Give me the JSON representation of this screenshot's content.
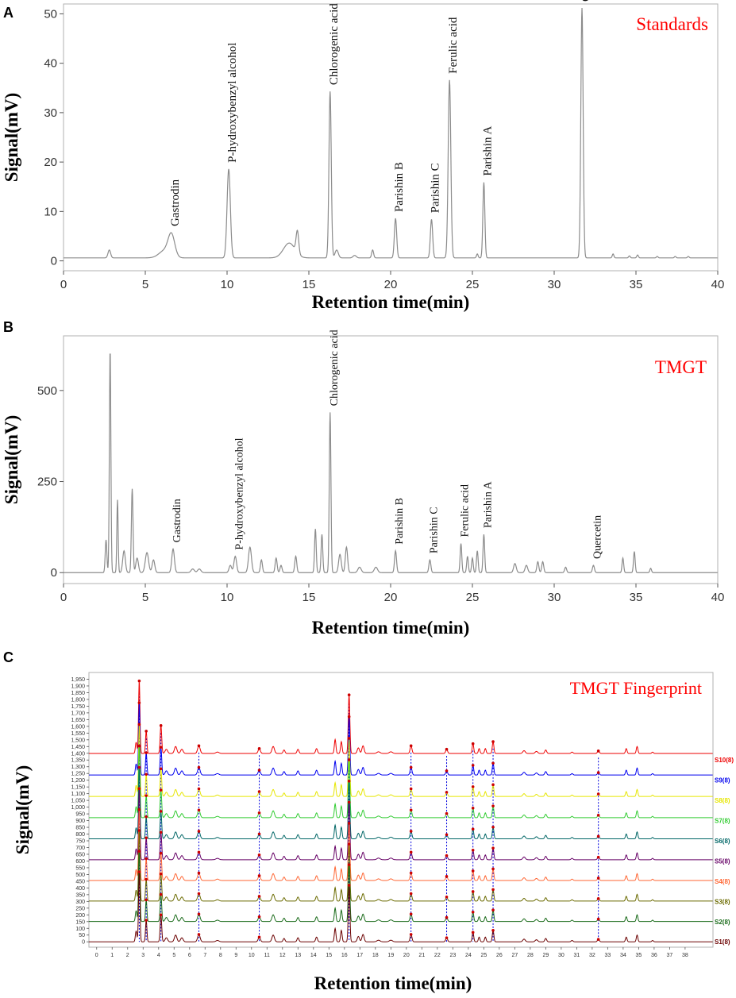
{
  "chart_data": [
    {
      "type": "line",
      "panel_label": "A",
      "title": "Standards",
      "title_color": "#ff0000",
      "xlabel": "Retention time(min)",
      "ylabel": "Signal(mV)",
      "xlim": [
        0,
        40
      ],
      "ylim": [
        -2,
        52
      ],
      "xticks": [
        0,
        5,
        10,
        15,
        20,
        25,
        30,
        35,
        40
      ],
      "yticks": [
        0,
        10,
        20,
        30,
        40,
        50
      ],
      "baseline": 0.6,
      "line_color": "#8c8c8c",
      "peaks": [
        {
          "t": 2.8,
          "h": 1.6,
          "w": 0.08
        },
        {
          "t": 6.6,
          "h": 4.3,
          "w": 0.2,
          "label": "Gastrodin"
        },
        {
          "t": 6.2,
          "h": 1.5,
          "w": 0.35
        },
        {
          "t": 10.1,
          "h": 18.0,
          "w": 0.1,
          "label": "P-hydroxybenzyl alcohol"
        },
        {
          "t": 13.8,
          "h": 3.0,
          "w": 0.35
        },
        {
          "t": 14.3,
          "h": 4.5,
          "w": 0.08
        },
        {
          "t": 16.3,
          "h": 33.7,
          "w": 0.07,
          "label": "Chlorogenic acid"
        },
        {
          "t": 16.7,
          "h": 1.6,
          "w": 0.1
        },
        {
          "t": 17.8,
          "h": 0.5,
          "w": 0.1
        },
        {
          "t": 18.9,
          "h": 1.6,
          "w": 0.06
        },
        {
          "t": 20.3,
          "h": 8.0,
          "w": 0.07,
          "label": "Parishin B"
        },
        {
          "t": 22.5,
          "h": 7.8,
          "w": 0.07,
          "label": "Parishin C"
        },
        {
          "t": 23.6,
          "h": 36.0,
          "w": 0.08,
          "label": "Ferulic acid"
        },
        {
          "t": 25.3,
          "h": 0.8,
          "w": 0.05
        },
        {
          "t": 25.7,
          "h": 15.3,
          "w": 0.06,
          "label": "Parishin A"
        },
        {
          "t": 31.7,
          "h": 50.6,
          "w": 0.07,
          "label": "Quercetin"
        },
        {
          "t": 33.6,
          "h": 0.8,
          "w": 0.05
        },
        {
          "t": 34.6,
          "h": 0.4,
          "w": 0.05
        },
        {
          "t": 35.1,
          "h": 0.6,
          "w": 0.05
        },
        {
          "t": 36.3,
          "h": 0.3,
          "w": 0.05
        },
        {
          "t": 37.4,
          "h": 0.3,
          "w": 0.05
        },
        {
          "t": 38.2,
          "h": 0.3,
          "w": 0.05
        }
      ]
    },
    {
      "type": "line",
      "panel_label": "B",
      "title": "TMGT",
      "title_color": "#ff0000",
      "xlabel": "Retention time(min)",
      "ylabel": "Signal(mV)",
      "xlim": [
        0,
        40
      ],
      "ylim": [
        -30,
        650
      ],
      "xticks": [
        0,
        5,
        10,
        15,
        20,
        25,
        30,
        35,
        40
      ],
      "yticks": [
        0,
        250,
        500
      ],
      "baseline": 0,
      "line_color": "#8c8c8c",
      "peaks": [
        {
          "t": 2.6,
          "h": 90,
          "w": 0.05
        },
        {
          "t": 2.85,
          "h": 615,
          "w": 0.045
        },
        {
          "t": 3.3,
          "h": 200,
          "w": 0.04
        },
        {
          "t": 3.7,
          "h": 60,
          "w": 0.08
        },
        {
          "t": 4.2,
          "h": 230,
          "w": 0.05
        },
        {
          "t": 4.5,
          "h": 40,
          "w": 0.08
        },
        {
          "t": 5.1,
          "h": 55,
          "w": 0.1
        },
        {
          "t": 5.5,
          "h": 35,
          "w": 0.08
        },
        {
          "t": 6.7,
          "h": 65,
          "w": 0.08,
          "label": "Gastrodin"
        },
        {
          "t": 7.9,
          "h": 10,
          "w": 0.1
        },
        {
          "t": 8.3,
          "h": 10,
          "w": 0.1
        },
        {
          "t": 10.5,
          "h": 45,
          "w": 0.08,
          "label": "P-hydroxybenzyl alcohol"
        },
        {
          "t": 10.2,
          "h": 20,
          "w": 0.08
        },
        {
          "t": 11.4,
          "h": 70,
          "w": 0.09
        },
        {
          "t": 12.1,
          "h": 35,
          "w": 0.06
        },
        {
          "t": 13.0,
          "h": 40,
          "w": 0.06
        },
        {
          "t": 13.3,
          "h": 20,
          "w": 0.06
        },
        {
          "t": 14.2,
          "h": 45,
          "w": 0.06
        },
        {
          "t": 15.4,
          "h": 120,
          "w": 0.05
        },
        {
          "t": 15.8,
          "h": 105,
          "w": 0.05
        },
        {
          "t": 16.3,
          "h": 440,
          "w": 0.05,
          "label": "Chlorogenic acid"
        },
        {
          "t": 16.9,
          "h": 50,
          "w": 0.08
        },
        {
          "t": 17.3,
          "h": 70,
          "w": 0.07
        },
        {
          "t": 18.1,
          "h": 15,
          "w": 0.1
        },
        {
          "t": 19.1,
          "h": 15,
          "w": 0.1
        },
        {
          "t": 20.3,
          "h": 60,
          "w": 0.06,
          "label": "Parishin B"
        },
        {
          "t": 22.4,
          "h": 35,
          "w": 0.06,
          "label": "Parishin C"
        },
        {
          "t": 24.3,
          "h": 80,
          "w": 0.05,
          "label": "Ferulic acid"
        },
        {
          "t": 24.7,
          "h": 45,
          "w": 0.05
        },
        {
          "t": 25.0,
          "h": 40,
          "w": 0.05
        },
        {
          "t": 25.3,
          "h": 60,
          "w": 0.05
        },
        {
          "t": 25.7,
          "h": 105,
          "w": 0.05,
          "label": "Parishin A"
        },
        {
          "t": 27.6,
          "h": 25,
          "w": 0.08
        },
        {
          "t": 28.3,
          "h": 20,
          "w": 0.08
        },
        {
          "t": 29.0,
          "h": 30,
          "w": 0.06
        },
        {
          "t": 29.3,
          "h": 30,
          "w": 0.06
        },
        {
          "t": 30.7,
          "h": 15,
          "w": 0.06
        },
        {
          "t": 32.4,
          "h": 20,
          "w": 0.06,
          "label": "Quercetin"
        },
        {
          "t": 34.2,
          "h": 40,
          "w": 0.05
        },
        {
          "t": 34.9,
          "h": 58,
          "w": 0.05
        },
        {
          "t": 35.9,
          "h": 12,
          "w": 0.05
        }
      ]
    },
    {
      "type": "line",
      "panel_label": "C",
      "title": "TMGT  Fingerprint",
      "title_color": "#ff0000",
      "xlabel": "Retention time(min)",
      "ylabel": "Signal(mV)",
      "xlim": [
        -0.5,
        39.8
      ],
      "ylim": [
        -40,
        2000
      ],
      "xticks": [
        0,
        1,
        2,
        3,
        4,
        5,
        6,
        7,
        8,
        9,
        10,
        11,
        12,
        13,
        14,
        15,
        16,
        17,
        18,
        19,
        20,
        21,
        22,
        23,
        24,
        25,
        26,
        27,
        28,
        29,
        30,
        31,
        32,
        33,
        34,
        35,
        36,
        37,
        38
      ],
      "yticks": [
        0,
        50,
        100,
        150,
        200,
        250,
        300,
        350,
        400,
        450,
        500,
        550,
        600,
        650,
        700,
        750,
        800,
        850,
        900,
        950,
        1000,
        1050,
        1100,
        1150,
        1200,
        1250,
        1300,
        1350,
        1400,
        1450,
        1500,
        1550,
        1600,
        1650,
        1700,
        1750,
        1800,
        1850,
        1900,
        1950
      ],
      "common_peaks": [
        2.75,
        3.2,
        4.15,
        6.6,
        10.5,
        16.3,
        20.3,
        22.6,
        24.3,
        25.6,
        32.4
      ],
      "marker_color": "#cc0000",
      "reference_line_color": "#0000dd",
      "series": [
        {
          "name": "S1(8)",
          "offset": 0,
          "color": "#6b0000"
        },
        {
          "name": "S2(8)",
          "offset": 150,
          "color": "#1a6b1a"
        },
        {
          "name": "S3(8)",
          "offset": 300,
          "color": "#6b6b00"
        },
        {
          "name": "S4(8)",
          "offset": 450,
          "color": "#ff6633"
        },
        {
          "name": "S5(8)",
          "offset": 600,
          "color": "#660066"
        },
        {
          "name": "S6(8)",
          "offset": 750,
          "color": "#006666"
        },
        {
          "name": "S7(8)",
          "offset": 900,
          "color": "#33cc33"
        },
        {
          "name": "S8(8)",
          "offset": 1050,
          "color": "#e6e600"
        },
        {
          "name": "S9(8)",
          "offset": 1200,
          "color": "#0000ee"
        },
        {
          "name": "S10(8)",
          "offset": 1350,
          "color": "#ee0000"
        }
      ],
      "profile": [
        {
          "t": 2.55,
          "h": 80,
          "w": 0.05
        },
        {
          "t": 2.75,
          "h": 520,
          "w": 0.045
        },
        {
          "t": 3.2,
          "h": 160,
          "w": 0.045
        },
        {
          "t": 4.15,
          "h": 200,
          "w": 0.05
        },
        {
          "t": 4.5,
          "h": 30,
          "w": 0.08
        },
        {
          "t": 5.1,
          "h": 50,
          "w": 0.08
        },
        {
          "t": 5.5,
          "h": 30,
          "w": 0.08
        },
        {
          "t": 6.6,
          "h": 55,
          "w": 0.08
        },
        {
          "t": 7.8,
          "h": 10,
          "w": 0.1
        },
        {
          "t": 10.5,
          "h": 35,
          "w": 0.07
        },
        {
          "t": 11.4,
          "h": 50,
          "w": 0.08
        },
        {
          "t": 12.1,
          "h": 25,
          "w": 0.06
        },
        {
          "t": 13.0,
          "h": 30,
          "w": 0.06
        },
        {
          "t": 14.2,
          "h": 35,
          "w": 0.06
        },
        {
          "t": 15.4,
          "h": 100,
          "w": 0.05
        },
        {
          "t": 15.8,
          "h": 85,
          "w": 0.05
        },
        {
          "t": 16.3,
          "h": 420,
          "w": 0.05
        },
        {
          "t": 16.9,
          "h": 40,
          "w": 0.07
        },
        {
          "t": 17.2,
          "h": 55,
          "w": 0.07
        },
        {
          "t": 18.2,
          "h": 12,
          "w": 0.1
        },
        {
          "t": 19.0,
          "h": 12,
          "w": 0.1
        },
        {
          "t": 20.3,
          "h": 55,
          "w": 0.06
        },
        {
          "t": 22.6,
          "h": 30,
          "w": 0.06
        },
        {
          "t": 24.3,
          "h": 70,
          "w": 0.05
        },
        {
          "t": 24.7,
          "h": 35,
          "w": 0.05
        },
        {
          "t": 25.1,
          "h": 35,
          "w": 0.05
        },
        {
          "t": 25.6,
          "h": 85,
          "w": 0.05
        },
        {
          "t": 27.6,
          "h": 20,
          "w": 0.08
        },
        {
          "t": 28.4,
          "h": 15,
          "w": 0.08
        },
        {
          "t": 29.0,
          "h": 25,
          "w": 0.06
        },
        {
          "t": 30.7,
          "h": 10,
          "w": 0.06
        },
        {
          "t": 32.4,
          "h": 18,
          "w": 0.06
        },
        {
          "t": 34.2,
          "h": 35,
          "w": 0.05
        },
        {
          "t": 34.9,
          "h": 50,
          "w": 0.05
        },
        {
          "t": 35.9,
          "h": 10,
          "w": 0.05
        }
      ]
    }
  ]
}
